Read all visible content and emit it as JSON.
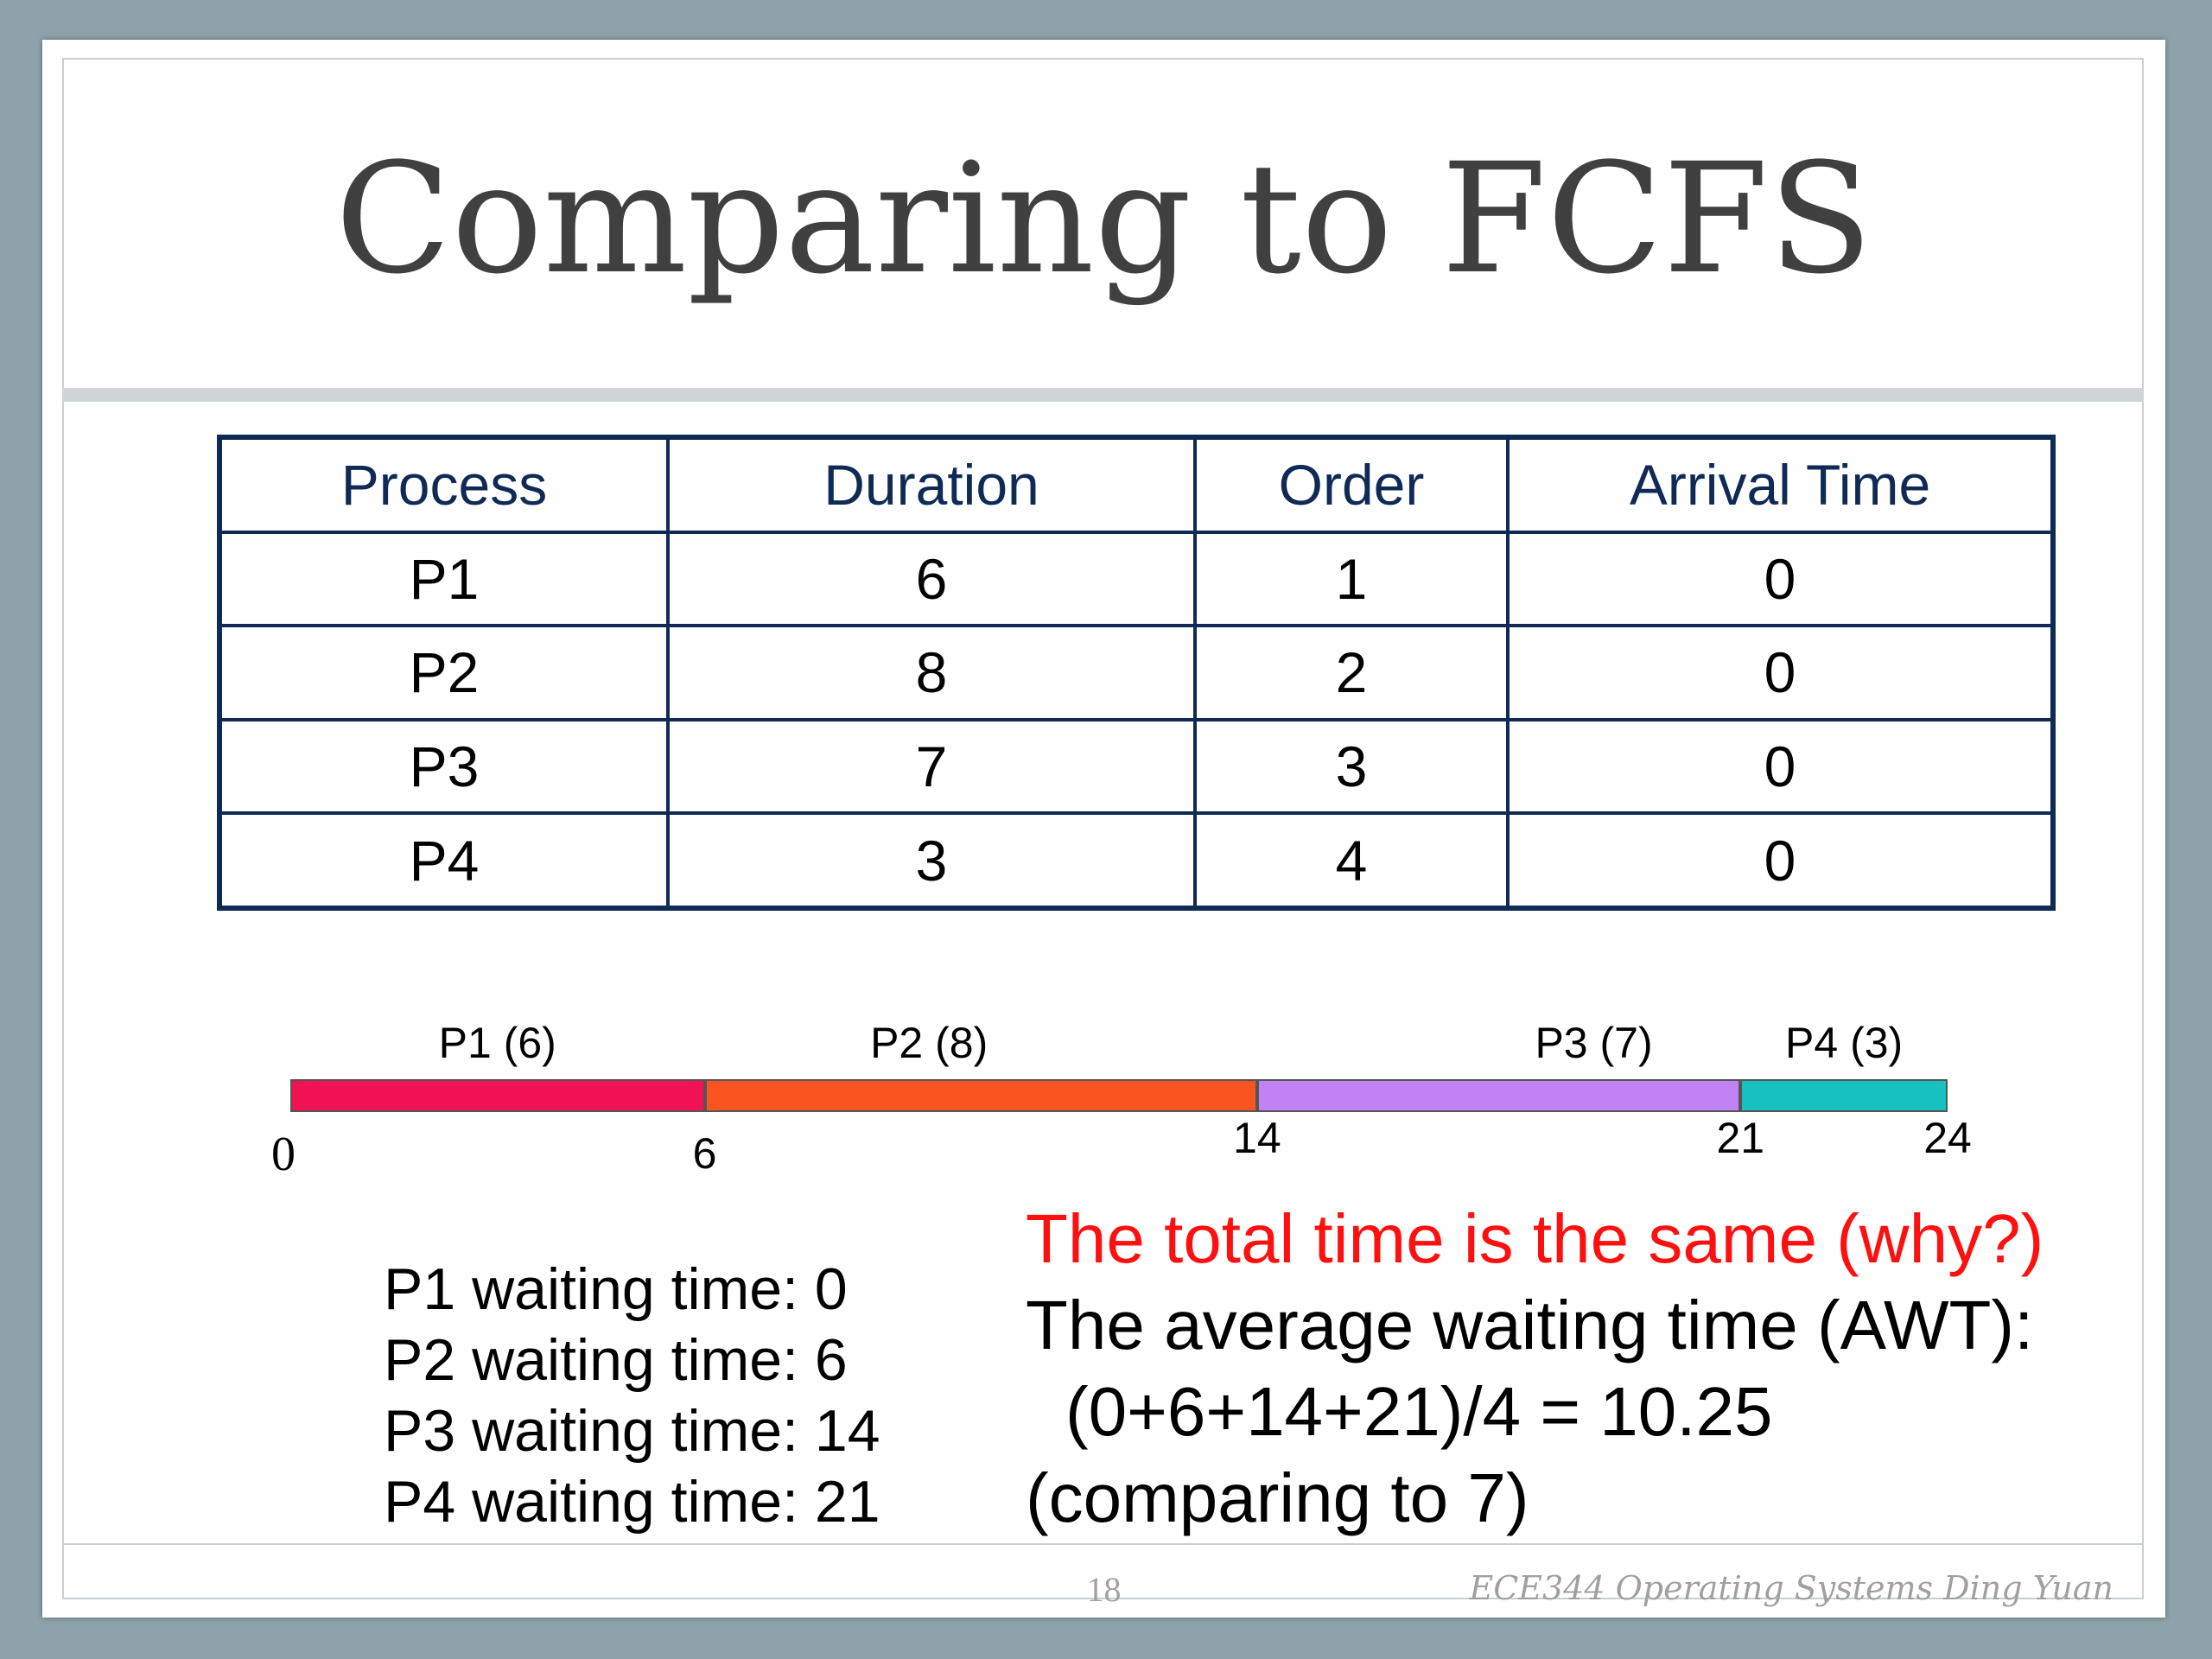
{
  "slide": {
    "title": "Comparing to FCFS",
    "page_number": "18",
    "footer": "ECE344 Operating Systems Ding Yuan"
  },
  "table": {
    "headers": [
      "Process",
      "Duration",
      "Order",
      "Arrival Time"
    ],
    "rows": [
      [
        "P1",
        "6",
        "1",
        "0"
      ],
      [
        "P2",
        "8",
        "2",
        "0"
      ],
      [
        "P3",
        "7",
        "3",
        "0"
      ],
      [
        "P4",
        "3",
        "4",
        "0"
      ]
    ]
  },
  "gantt": {
    "segments": [
      {
        "label": "P1 (6)",
        "start": 0,
        "end": 6,
        "color": "#f01252"
      },
      {
        "label": "P2 (8)",
        "start": 6,
        "end": 14,
        "color": "#fa5420"
      },
      {
        "label": "P3 (7)",
        "start": 14,
        "end": 21,
        "color": "#c182f5"
      },
      {
        "label": "P4 (3)",
        "start": 21,
        "end": 24,
        "color": "#17c1bf"
      }
    ],
    "ticks": [
      "0",
      "6",
      "14",
      "21",
      "24"
    ]
  },
  "waiting_times": [
    "P1 waiting time: 0",
    "P2 waiting time: 6",
    "P3 waiting time: 14",
    "P4 waiting time: 21"
  ],
  "notes": {
    "line1": "The total time is the same (why?)",
    "line2": "The average waiting time (AWT):",
    "line3": "(0+6+14+21)/4 = 10.25",
    "line4": "(comparing to 7)"
  }
}
